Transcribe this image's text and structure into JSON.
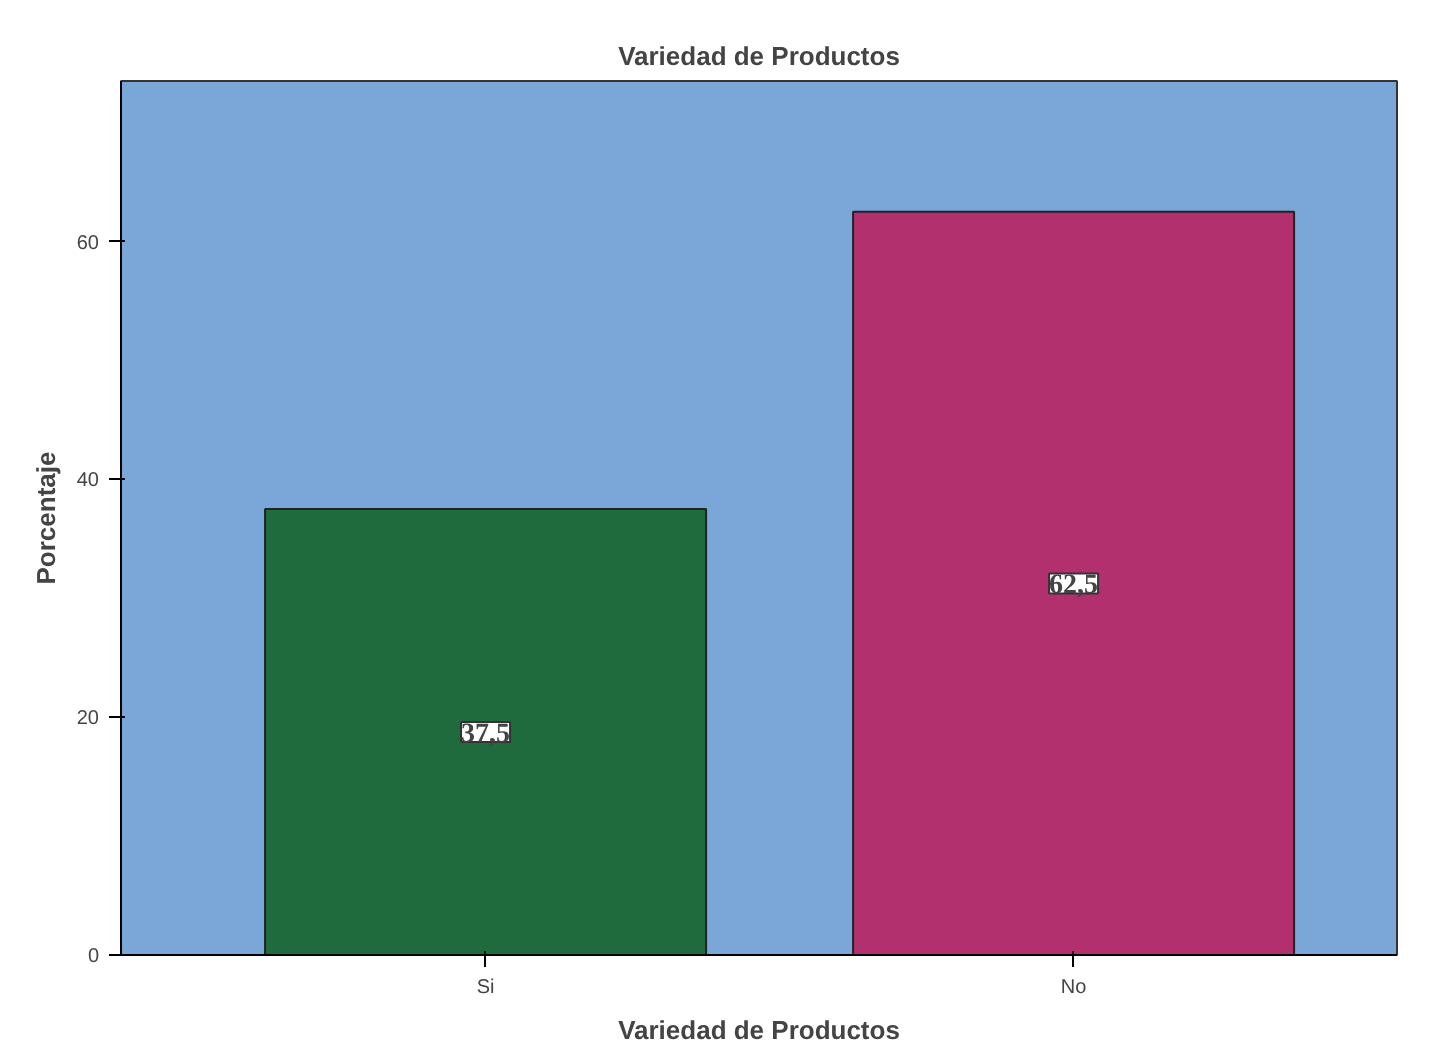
{
  "chart_data": {
    "type": "bar",
    "title": "Variedad de Productos",
    "xlabel": "Variedad de Productos",
    "ylabel": "Porcentaje",
    "categories": [
      "Si",
      "No"
    ],
    "values": [
      37.5,
      62.5
    ],
    "colors": [
      "#1f6b3d",
      "#b3306f"
    ],
    "value_labels": [
      "37,5",
      "62,5"
    ],
    "ylim": [
      0,
      73.5
    ],
    "yticks": [
      0,
      20,
      40,
      60
    ],
    "grid": false
  }
}
